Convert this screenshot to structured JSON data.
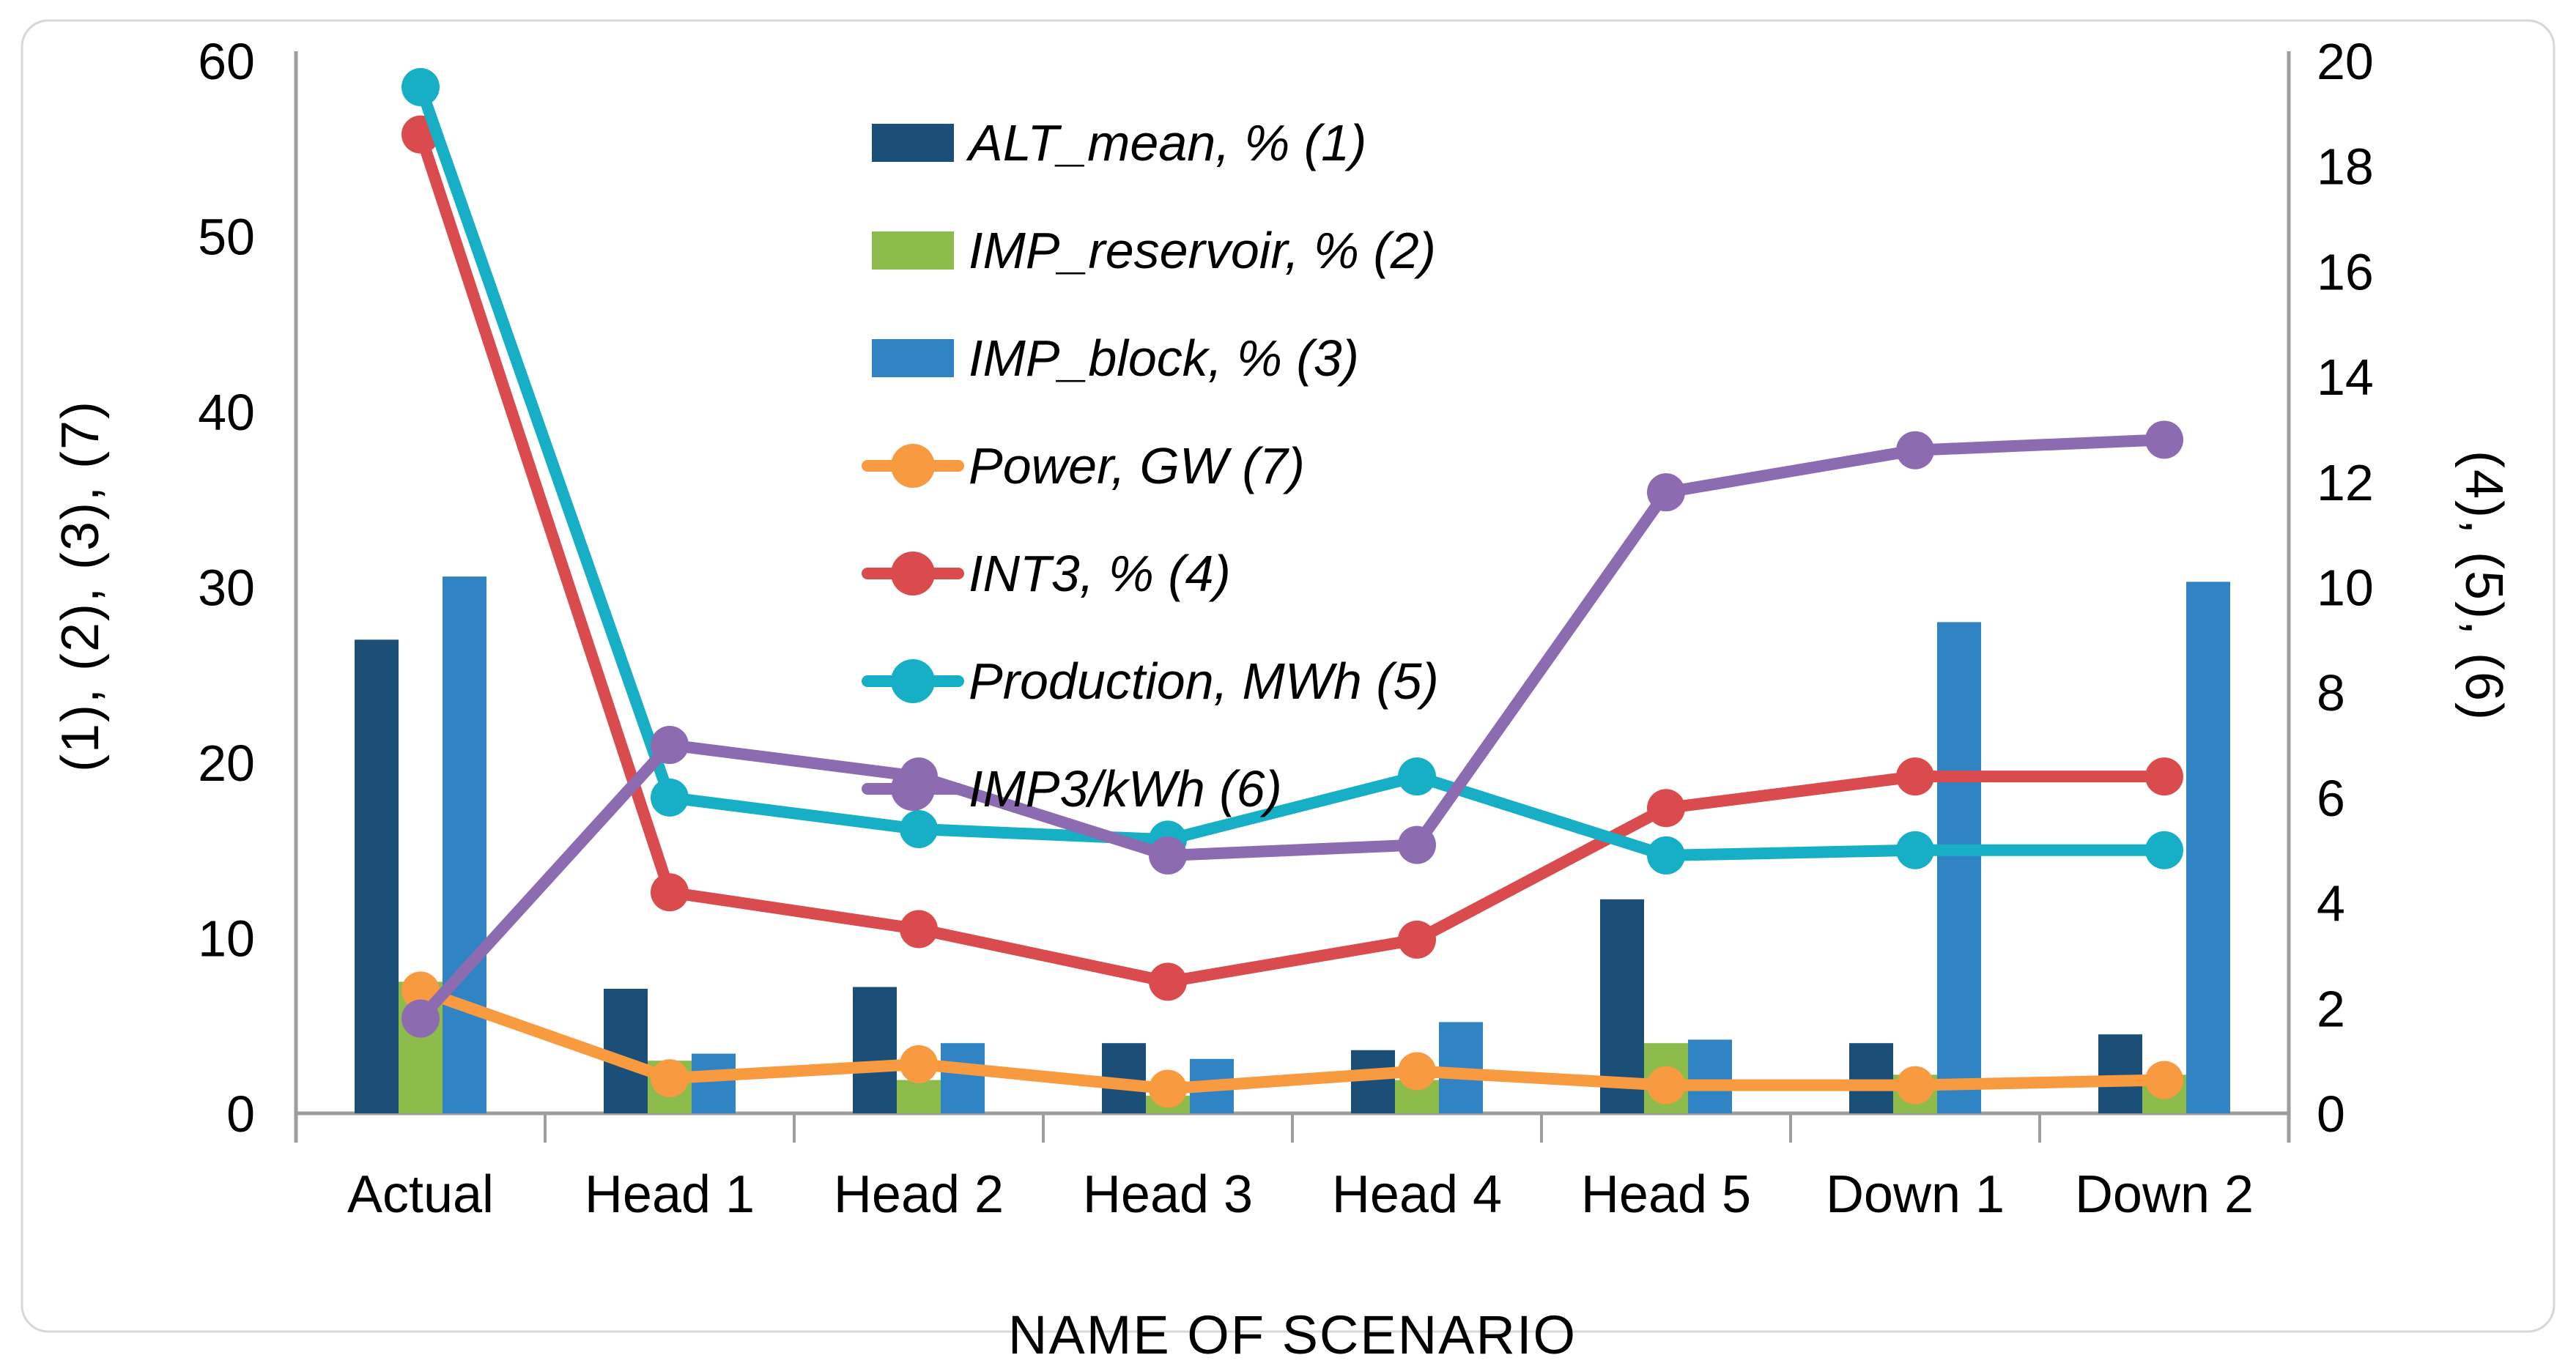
{
  "figure": {
    "background": "#ffffff",
    "border_color": "#d7d7d7",
    "axis_line_color": "#9e9e9e",
    "text_color": "#000000"
  },
  "chart_data": {
    "type": "bar",
    "subtype": "bar-line-combo-dual-axis",
    "categories": [
      "Actual",
      "Head 1",
      "Head 2",
      "Head 3",
      "Head 4",
      "Head 5",
      "Down 1",
      "Down 2"
    ],
    "series": [
      {
        "name": "ALT_mean, % (1)",
        "kind": "bar",
        "axis": "left",
        "color": "#1B4F78",
        "values": [
          27.0,
          7.1,
          7.2,
          4.0,
          3.6,
          12.2,
          4.0,
          4.5
        ]
      },
      {
        "name": "IMP_reservoir, % (2)",
        "kind": "bar",
        "axis": "left",
        "color": "#8DBB4C",
        "values": [
          7.5,
          3.0,
          1.9,
          1.0,
          1.9,
          4.0,
          2.2,
          2.2
        ]
      },
      {
        "name": "IMP_block, % (3)",
        "kind": "bar",
        "axis": "left",
        "color": "#3184C4",
        "values": [
          30.6,
          3.4,
          4.0,
          3.1,
          5.2,
          4.2,
          28.0,
          30.3
        ]
      },
      {
        "name": "Power, GW (7)",
        "kind": "line",
        "axis": "left",
        "color": "#F89A40",
        "values": [
          7.0,
          2.0,
          2.8,
          1.4,
          2.4,
          1.6,
          1.6,
          1.9
        ]
      },
      {
        "name": "INT3, % (4)",
        "kind": "line",
        "axis": "right",
        "color": "#D94B4D",
        "values": [
          18.6,
          4.2,
          3.5,
          2.5,
          3.3,
          5.8,
          6.4,
          6.4
        ]
      },
      {
        "name": "Production, MWh (5)",
        "kind": "line",
        "axis": "right",
        "color": "#16AFC6",
        "values": [
          19.5,
          6.0,
          5.4,
          5.2,
          6.4,
          4.9,
          5.0,
          5.0
        ]
      },
      {
        "name": "IMP3/kWh (6)",
        "kind": "line",
        "axis": "right",
        "color": "#8D6BB0",
        "values": [
          1.8,
          7.0,
          6.4,
          4.9,
          5.1,
          11.8,
          12.6,
          12.8
        ]
      }
    ],
    "title": "",
    "xlabel": "NAME OF SCENARIO",
    "ylabel_left": "(1), (2), (3), (7)",
    "ylabel_right": "(4), (5), (6)",
    "ylim_left": [
      0,
      60
    ],
    "ylim_right": [
      0,
      20
    ],
    "yticks_left": [
      0,
      10,
      20,
      30,
      40,
      50,
      60
    ],
    "yticks_right": [
      0,
      2,
      4,
      6,
      8,
      10,
      12,
      14,
      16,
      18,
      20
    ],
    "grid": false,
    "legend_position": "inside-top-center",
    "legend_order": [
      "ALT_mean, % (1)",
      "IMP_reservoir, % (2)",
      "IMP_block, % (3)",
      "Power, GW (7)",
      "INT3, % (4)",
      "Production, MWh (5)",
      "IMP3/kWh (6)"
    ]
  }
}
